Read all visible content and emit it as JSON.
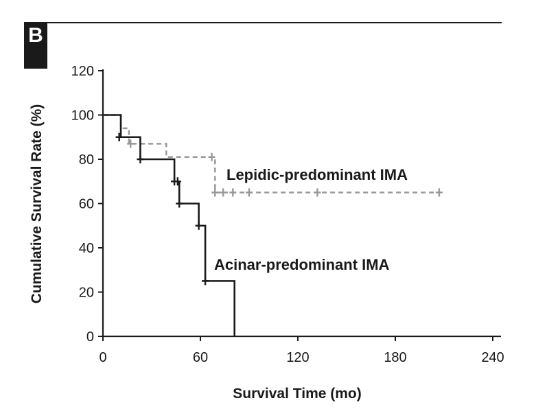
{
  "panel_label": "B",
  "chart_data": {
    "type": "line",
    "subtype": "kaplan-meier step",
    "xlabel": "Survival Time (mo)",
    "ylabel": "Cumulative Survival Rate (%)",
    "xlim": [
      0,
      240
    ],
    "ylim": [
      0,
      120
    ],
    "xticks": [
      0,
      60,
      120,
      180,
      240
    ],
    "yticks": [
      0,
      20,
      40,
      60,
      80,
      100,
      120
    ],
    "grid": false,
    "legend": "none",
    "series": [
      {
        "name": "Lepidic-predominant IMA",
        "color": "#999999",
        "style": "dashed",
        "steps": [
          [
            0,
            100
          ],
          [
            11,
            94
          ],
          [
            16,
            87
          ],
          [
            39,
            81
          ],
          [
            69,
            65
          ],
          [
            208,
            65
          ]
        ],
        "censored": [
          [
            10,
            90
          ],
          [
            17,
            87
          ],
          [
            67,
            81
          ],
          [
            69,
            65
          ],
          [
            74,
            65
          ],
          [
            80,
            65
          ],
          [
            90,
            65
          ],
          [
            132,
            65
          ],
          [
            207,
            65
          ]
        ]
      },
      {
        "name": "Acinar-predominant IMA",
        "color": "#1a1a1a",
        "style": "solid",
        "steps": [
          [
            0,
            100
          ],
          [
            11,
            90
          ],
          [
            23,
            80
          ],
          [
            44,
            70
          ],
          [
            47,
            60
          ],
          [
            59,
            50
          ],
          [
            63,
            25
          ],
          [
            81,
            0
          ]
        ],
        "censored": [
          [
            10,
            90
          ],
          [
            23,
            80
          ],
          [
            44,
            70
          ],
          [
            46,
            70
          ],
          [
            47,
            60
          ],
          [
            59,
            50
          ],
          [
            63,
            25
          ]
        ]
      }
    ]
  }
}
